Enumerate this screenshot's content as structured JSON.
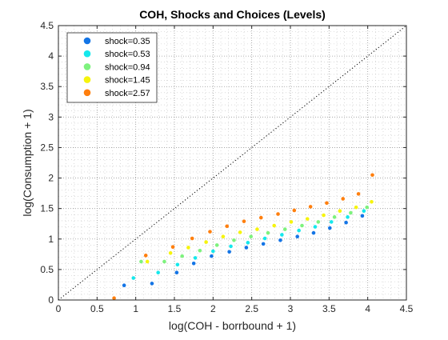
{
  "chart_data": {
    "type": "scatter",
    "title": "COH, Shocks and Choices (Levels)",
    "xlabel": "log(COH - borrbound + 1)",
    "ylabel": "log(Consumption + 1)",
    "xlim": [
      0,
      4.5
    ],
    "ylim": [
      0,
      4.5
    ],
    "xticks": [
      "0",
      "0.5",
      "1",
      "1.5",
      "2",
      "2.5",
      "3",
      "3.5",
      "4",
      "4.5"
    ],
    "yticks": [
      "0",
      "0.5",
      "1",
      "1.5",
      "2",
      "2.5",
      "3",
      "3.5",
      "4",
      "4.5"
    ],
    "grid": "on (dotted, with minor grid)",
    "legend_location": "top-left",
    "reference_line": {
      "style": "dotted",
      "color": "#000000",
      "x": [
        0,
        4.5
      ],
      "y": [
        0,
        4.5
      ]
    },
    "series": [
      {
        "name": "shock=0.35",
        "color": "#1475e6",
        "x": [
          0.85,
          1.21,
          1.53,
          1.75,
          1.98,
          2.21,
          2.43,
          2.65,
          2.87,
          3.09,
          3.3,
          3.51,
          3.72,
          3.93
        ],
        "y": [
          0.24,
          0.27,
          0.45,
          0.6,
          0.72,
          0.79,
          0.86,
          0.92,
          0.98,
          1.04,
          1.1,
          1.18,
          1.27,
          1.38
        ]
      },
      {
        "name": "shock=0.53",
        "color": "#15e8ec",
        "x": [
          0.97,
          1.29,
          1.54,
          1.77,
          2.0,
          2.23,
          2.45,
          2.67,
          2.89,
          3.11,
          3.32,
          3.53,
          3.74,
          3.95
        ],
        "y": [
          0.36,
          0.45,
          0.58,
          0.69,
          0.8,
          0.88,
          0.94,
          1.01,
          1.07,
          1.14,
          1.2,
          1.28,
          1.36,
          1.46
        ]
      },
      {
        "name": "shock=0.94",
        "color": "#7ef27e",
        "x": [
          1.07,
          1.37,
          1.6,
          1.83,
          2.05,
          2.27,
          2.49,
          2.71,
          2.93,
          3.15,
          3.36,
          3.57,
          3.78,
          3.99
        ],
        "y": [
          0.63,
          0.63,
          0.72,
          0.81,
          0.9,
          0.98,
          1.04,
          1.1,
          1.16,
          1.22,
          1.28,
          1.36,
          1.43,
          1.52
        ]
      },
      {
        "name": "shock=1.45",
        "color": "#f6f40d",
        "x": [
          1.15,
          1.45,
          1.68,
          1.91,
          2.13,
          2.35,
          2.57,
          2.79,
          3.01,
          3.22,
          3.43,
          3.64,
          3.85,
          4.05
        ],
        "y": [
          0.63,
          0.77,
          0.86,
          0.95,
          1.04,
          1.11,
          1.16,
          1.22,
          1.28,
          1.33,
          1.39,
          1.46,
          1.52,
          1.61
        ]
      },
      {
        "name": "shock=2.57",
        "color": "#ff7f0e",
        "x": [
          0.72,
          1.13,
          1.48,
          1.73,
          1.96,
          2.18,
          2.4,
          2.62,
          2.84,
          3.05,
          3.26,
          3.47,
          3.68,
          3.88,
          4.06
        ],
        "y": [
          0.03,
          0.73,
          0.87,
          1.01,
          1.12,
          1.21,
          1.29,
          1.35,
          1.41,
          1.47,
          1.53,
          1.59,
          1.66,
          1.74,
          2.05
        ]
      }
    ]
  }
}
